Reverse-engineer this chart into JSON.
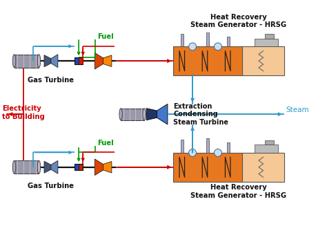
{
  "bg_color": "#ffffff",
  "labels": {
    "hrsg_top": "Heat Recovery\nSteam Generator - HRSG",
    "hrsg_bottom": "Heat Recovery\nSteam Generator - HRSG",
    "gas_turbine_top": "Gas Turbine",
    "gas_turbine_bottom": "Gas Turbine",
    "steam_turbine": "Extraction\nCondensing\nSteam Turbine",
    "electricity": "Electricity\nto Building",
    "fuel_top": "Fuel",
    "fuel_bottom": "Fuel",
    "steam": "Steam"
  },
  "colors": {
    "red": "#cc0000",
    "blue": "#3399cc",
    "green": "#009900",
    "orange": "#e87820",
    "light_orange": "#f5c896",
    "dark_gray": "#555566",
    "gray_body": "#8888aa",
    "black": "#111111",
    "dark_blue": "#223366",
    "steel_blue": "#4477cc",
    "white": "#ffffff",
    "pipe_gray": "#aaaacc",
    "hrsg_border": "#555555"
  }
}
